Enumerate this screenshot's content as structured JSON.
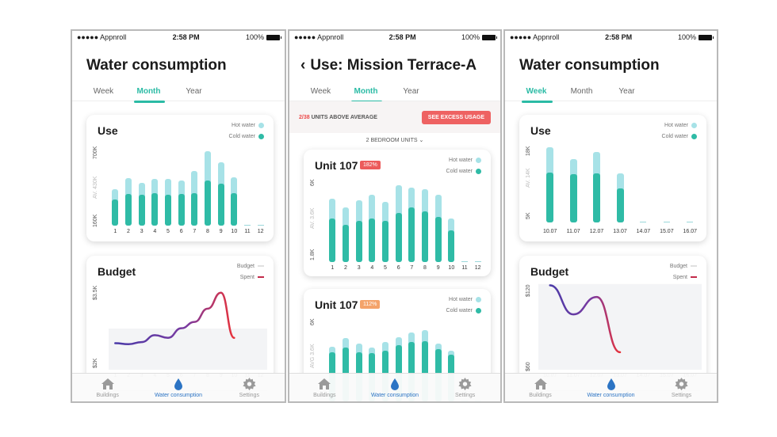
{
  "status": {
    "carrier": "●●●●● Appnroll",
    "time": "2:58 PM",
    "battery": "100%"
  },
  "tabbar": {
    "items": [
      {
        "label": "Buildings",
        "icon": "house-icon"
      },
      {
        "label": "Water consumption",
        "icon": "water-drop-icon"
      },
      {
        "label": "Settings",
        "icon": "gear-icon"
      }
    ]
  },
  "legend": {
    "hot": "Hot water",
    "cold": "Cold water",
    "budget": "Budget",
    "spent": "Spent"
  },
  "colors": {
    "accent": "#2bbba5",
    "hot_water": "#a7e2e7",
    "cold_water": "#2fbba6",
    "tab_active": "#2c74c4",
    "alert": "#ee6262"
  },
  "screen1": {
    "title": "Water consumption",
    "tabs": [
      "Week",
      "Month",
      "Year"
    ],
    "active_tab": "Month",
    "use_card": {
      "title": "Use",
      "y_top": "700K",
      "y_avg": "AV. 430K",
      "y_bottom": "160K"
    },
    "budget_card": {
      "title": "Budget",
      "y_top": "$3.5K",
      "y_bottom": "$2K"
    }
  },
  "screen2": {
    "title": "Use: Mission Terrace-A",
    "tabs": [
      "Week",
      "Month",
      "Year"
    ],
    "active_tab": "Month",
    "banner": {
      "highlight": "2/38",
      "text": " UNITS ABOVE AVERAGE",
      "button": "SEE EXCESS USAGE"
    },
    "group": "2 BEDROOM UNITS",
    "card1": {
      "title": "Unit 107",
      "badge": "182%",
      "y_top": "6K",
      "y_avg": "AV. 3.6K",
      "y_bottom": "1.8K"
    },
    "card2": {
      "title": "Unit 107",
      "badge": "112%",
      "y_top": "6K",
      "y_avg": "AVG 3.6K"
    }
  },
  "screen3": {
    "title": "Water consumption",
    "tabs": [
      "Week",
      "Month",
      "Year"
    ],
    "active_tab": "Week",
    "use_card": {
      "title": "Use",
      "y_top": "18K",
      "y_avg": "AV. 14K",
      "y_bottom": "5K"
    },
    "budget_card": {
      "title": "Budget",
      "y_top": "$120",
      "y_bottom": "$60"
    }
  },
  "chart_data": [
    {
      "type": "bar",
      "title": "Use",
      "categories": [
        "1",
        "2",
        "3",
        "4",
        "5",
        "6",
        "7",
        "8",
        "9",
        "10",
        "11",
        "12"
      ],
      "series": [
        {
          "name": "Hot water",
          "values": [
            320,
            420,
            380,
            410,
            410,
            400,
            480,
            660,
            560,
            430,
            0,
            0
          ]
        },
        {
          "name": "Cold water",
          "values": [
            230,
            280,
            270,
            290,
            270,
            280,
            290,
            400,
            370,
            290,
            0,
            0
          ]
        }
      ],
      "ylim": [
        160000,
        700000
      ]
    },
    {
      "type": "line",
      "title": "Budget",
      "categories": [
        "1",
        "2",
        "3",
        "4",
        "5",
        "6",
        "7",
        "8",
        "9",
        "10",
        "11",
        "12"
      ],
      "series": [
        {
          "name": "Spent",
          "values": [
            2.5,
            2.48,
            2.52,
            2.65,
            2.6,
            2.78,
            2.9,
            3.15,
            3.45,
            2.6,
            null,
            null
          ]
        }
      ],
      "ylim": [
        2000,
        3500
      ]
    },
    {
      "type": "bar",
      "title": "Unit 107",
      "badge": "182%",
      "categories": [
        "1",
        "2",
        "3",
        "4",
        "5",
        "6",
        "7",
        "8",
        "9",
        "10",
        "11",
        "12"
      ],
      "series": [
        {
          "name": "Hot water",
          "values": [
            4.6,
            4.0,
            4.5,
            4.9,
            4.4,
            5.6,
            5.4,
            5.3,
            4.9,
            3.2,
            0,
            0
          ]
        },
        {
          "name": "Cold water",
          "values": [
            3.2,
            2.7,
            3.0,
            3.2,
            3.0,
            3.6,
            4.0,
            3.7,
            3.3,
            2.3,
            0,
            0
          ]
        }
      ],
      "ylim": [
        1800,
        6000
      ]
    },
    {
      "type": "bar",
      "title": "Unit 107",
      "badge": "112%",
      "categories": [
        "1",
        "2",
        "3",
        "4",
        "5",
        "6",
        "7",
        "8",
        "9",
        "10",
        "11",
        "12"
      ],
      "series": [
        {
          "name": "Hot water",
          "values": [
            4.0,
            4.6,
            4.2,
            3.9,
            4.3,
            4.7,
            5.0,
            5.2,
            4.2,
            3.7,
            0,
            0
          ]
        },
        {
          "name": "Cold water",
          "values": [
            3.6,
            3.9,
            3.6,
            3.5,
            3.7,
            4.1,
            4.3,
            4.4,
            3.8,
            3.4,
            0,
            0
          ]
        }
      ],
      "ylim": [
        1800,
        6000
      ]
    },
    {
      "type": "bar",
      "title": "Use",
      "categories": [
        "10.07",
        "11.07",
        "12.07",
        "13.07",
        "14.07",
        "15.07",
        "16.07"
      ],
      "series": [
        {
          "name": "Hot water",
          "values": [
            17.5,
            14.8,
            16.5,
            11.5,
            0,
            0,
            0
          ]
        },
        {
          "name": "Cold water",
          "values": [
            11.6,
            11.3,
            11.5,
            7.9,
            0,
            0,
            0
          ]
        }
      ],
      "ylim": [
        5000,
        18000
      ]
    },
    {
      "type": "line",
      "title": "Budget",
      "categories": [
        "10.07",
        "11.07",
        "12.07",
        "13.07",
        "14.07",
        "15.07",
        "16.07"
      ],
      "series": [
        {
          "name": "Spent",
          "values": [
            118,
            98,
            110,
            72,
            null,
            null,
            null
          ]
        }
      ],
      "ylim": [
        60,
        120
      ]
    }
  ]
}
